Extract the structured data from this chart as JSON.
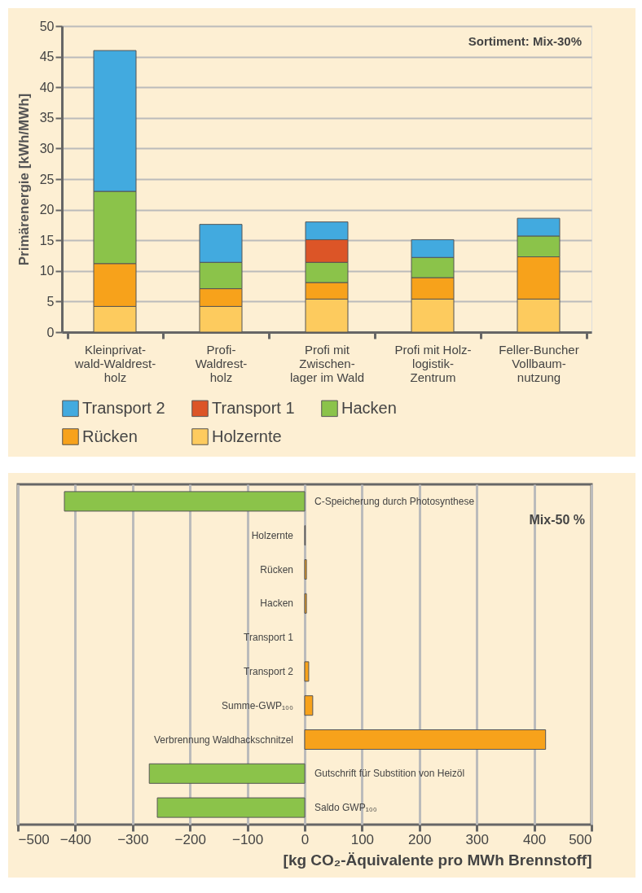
{
  "chart_data": [
    {
      "type": "bar",
      "stacked": true,
      "ylabel": "Primärenergie [kWh/MWh]",
      "categories": [
        "Kleinprivat-\nwald-Waldrest-\nholz",
        "Profi-\nWaldrest-\nholz",
        "Profi mit\nZwischen-\nlager im Wald",
        "Profi mit Holz-\nlogistik-\nZentrum",
        "Feller-Buncher\nVollbaum-\nnutzung"
      ],
      "series": [
        {
          "name": "Holzernte",
          "color": "#fdcb5e",
          "values": [
            4.2,
            4.2,
            5.4,
            5.4,
            5.4
          ]
        },
        {
          "name": "Rücken",
          "color": "#f7a21b",
          "values": [
            7.0,
            2.9,
            2.7,
            3.5,
            6.9
          ]
        },
        {
          "name": "Hacken",
          "color": "#8bc34a",
          "values": [
            11.8,
            4.3,
            3.3,
            3.3,
            3.4
          ]
        },
        {
          "name": "Transport 1",
          "color": "#dc5527",
          "values": [
            null,
            null,
            3.7,
            null,
            null
          ]
        },
        {
          "name": "Transport 2",
          "color": "#42aadf",
          "values": [
            23.0,
            6.2,
            2.9,
            2.9,
            2.9
          ]
        }
      ],
      "ylim": [
        0,
        50
      ],
      "yticks": [
        0,
        5,
        10,
        15,
        20,
        25,
        30,
        35,
        40,
        45,
        50
      ],
      "grid": "y",
      "legend": "bottom",
      "annotations": [
        "Sortiment: Mix-30%"
      ]
    },
    {
      "type": "bar",
      "orientation": "horizontal",
      "categories": [
        "C-Speicherung durch Photosynthese",
        "Holzernte",
        "Rücken",
        "Hacken",
        "Transport 1",
        "Transport 2",
        "Summe-GWP₁₀₀",
        "Verbrennung Waldhackschnitzel",
        "Gutschrift für Substition von Heizöl",
        "Saldo GWP₁₀₀"
      ],
      "values": [
        -419,
        1,
        3,
        3,
        null,
        7,
        14,
        420,
        -271,
        -257
      ],
      "colors": [
        "#8bc34a",
        "#f7a21b",
        "#f7a21b",
        "#f7a21b",
        "#f7a21b",
        "#f7a21b",
        "#f7a21b",
        "#f7a21b",
        "#8bc34a",
        "#8bc34a"
      ],
      "xlim": [
        -500,
        500
      ],
      "xticks": [
        {
          "value": -500,
          "label": "−500"
        },
        {
          "value": -400,
          "label": "−400"
        },
        {
          "value": -300,
          "label": "−300"
        },
        {
          "value": -200,
          "label": "−200"
        },
        {
          "value": -100,
          "label": "−100"
        },
        0,
        100,
        200,
        300,
        400,
        500
      ],
      "xlabel": "[kg CO₂-Äquivalente pro MWh Brennstoff]",
      "grid": "x",
      "tick_labels": "x",
      "annotations": [
        "Mix-50 %"
      ]
    }
  ]
}
